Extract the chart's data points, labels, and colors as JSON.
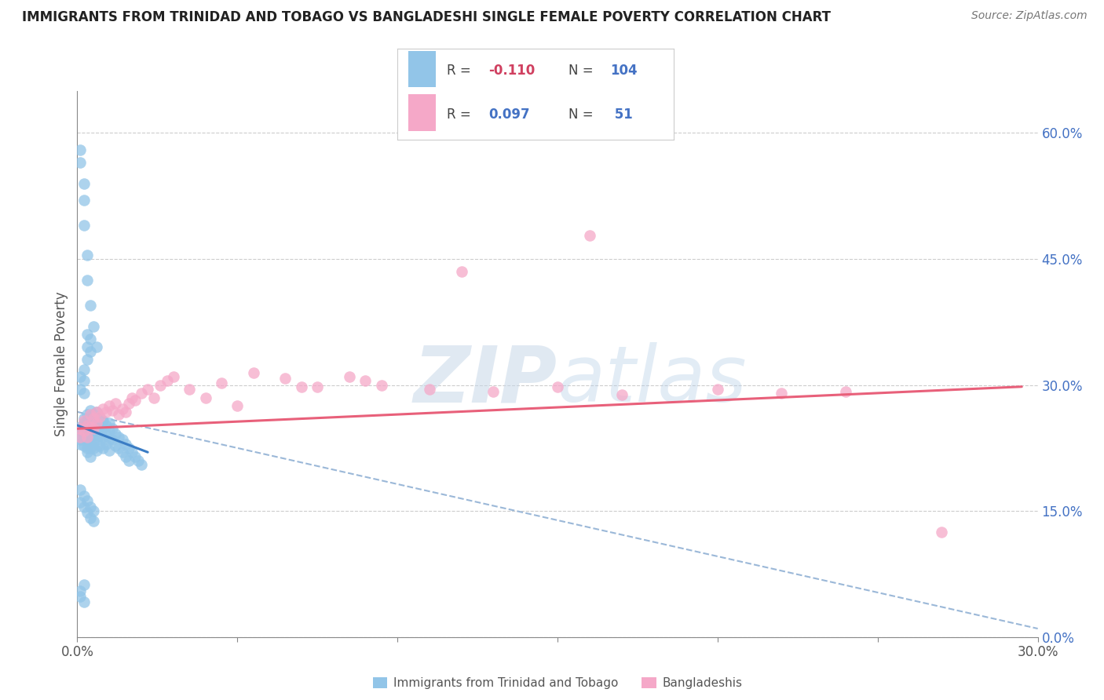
{
  "title": "IMMIGRANTS FROM TRINIDAD AND TOBAGO VS BANGLADESHI SINGLE FEMALE POVERTY CORRELATION CHART",
  "source": "Source: ZipAtlas.com",
  "ylabel": "Single Female Poverty",
  "xlim": [
    0.0,
    0.3
  ],
  "ylim": [
    0.0,
    0.65
  ],
  "right_yticks": [
    0.0,
    0.15,
    0.3,
    0.45,
    0.6
  ],
  "right_yticklabels": [
    "0.0%",
    "15.0%",
    "30.0%",
    "45.0%",
    "60.0%"
  ],
  "xticks": [
    0.0,
    0.05,
    0.1,
    0.15,
    0.2,
    0.25,
    0.3
  ],
  "xticklabels": [
    "0.0%",
    "",
    "",
    "",
    "",
    "",
    "30.0%"
  ],
  "blue_color": "#92C5E8",
  "pink_color": "#F5A8C8",
  "trend_blue_color": "#3A7CC4",
  "trend_pink_color": "#E8607A",
  "trend_gray_color": "#9BB8D8",
  "watermark_color": "#D8E8F5",
  "series1_label": "Immigrants from Trinidad and Tobago",
  "series2_label": "Bangladeshis",
  "legend_r1_val": "-0.110",
  "legend_n1_val": "104",
  "legend_r2_val": "0.097",
  "legend_n2_val": " 51",
  "blue_points_x": [
    0.001,
    0.001,
    0.001,
    0.001,
    0.001,
    0.002,
    0.002,
    0.002,
    0.002,
    0.002,
    0.002,
    0.002,
    0.003,
    0.003,
    0.003,
    0.003,
    0.003,
    0.003,
    0.003,
    0.003,
    0.004,
    0.004,
    0.004,
    0.004,
    0.004,
    0.004,
    0.004,
    0.004,
    0.005,
    0.005,
    0.005,
    0.005,
    0.005,
    0.005,
    0.006,
    0.006,
    0.006,
    0.006,
    0.006,
    0.007,
    0.007,
    0.007,
    0.007,
    0.008,
    0.008,
    0.008,
    0.008,
    0.009,
    0.009,
    0.009,
    0.01,
    0.01,
    0.01,
    0.01,
    0.011,
    0.011,
    0.012,
    0.012,
    0.013,
    0.013,
    0.014,
    0.014,
    0.015,
    0.015,
    0.016,
    0.016,
    0.017,
    0.018,
    0.019,
    0.02,
    0.001,
    0.001,
    0.002,
    0.002,
    0.002,
    0.003,
    0.003,
    0.003,
    0.004,
    0.004,
    0.001,
    0.001,
    0.002,
    0.002,
    0.003,
    0.003,
    0.004,
    0.004,
    0.005,
    0.005,
    0.001,
    0.002,
    0.002,
    0.003,
    0.003,
    0.004,
    0.005,
    0.006,
    0.001,
    0.002,
    0.001,
    0.001,
    0.002,
    0.002
  ],
  "blue_points_y": [
    0.25,
    0.245,
    0.24,
    0.235,
    0.23,
    0.26,
    0.255,
    0.25,
    0.245,
    0.24,
    0.235,
    0.228,
    0.265,
    0.258,
    0.25,
    0.245,
    0.238,
    0.232,
    0.225,
    0.22,
    0.27,
    0.262,
    0.255,
    0.248,
    0.24,
    0.232,
    0.225,
    0.215,
    0.265,
    0.255,
    0.248,
    0.24,
    0.232,
    0.225,
    0.268,
    0.255,
    0.245,
    0.235,
    0.222,
    0.26,
    0.25,
    0.24,
    0.228,
    0.258,
    0.248,
    0.238,
    0.225,
    0.252,
    0.242,
    0.23,
    0.255,
    0.245,
    0.235,
    0.222,
    0.248,
    0.235,
    0.242,
    0.228,
    0.238,
    0.225,
    0.235,
    0.22,
    0.23,
    0.215,
    0.225,
    0.21,
    0.22,
    0.215,
    0.21,
    0.205,
    0.31,
    0.295,
    0.305,
    0.318,
    0.29,
    0.36,
    0.345,
    0.33,
    0.355,
    0.34,
    0.175,
    0.16,
    0.168,
    0.155,
    0.162,
    0.148,
    0.155,
    0.142,
    0.15,
    0.138,
    0.565,
    0.52,
    0.49,
    0.455,
    0.425,
    0.395,
    0.37,
    0.345,
    0.58,
    0.54,
    0.055,
    0.048,
    0.062,
    0.042
  ],
  "pink_points_x": [
    0.001,
    0.001,
    0.002,
    0.002,
    0.003,
    0.003,
    0.004,
    0.004,
    0.005,
    0.005,
    0.006,
    0.006,
    0.007,
    0.008,
    0.009,
    0.01,
    0.011,
    0.012,
    0.013,
    0.014,
    0.015,
    0.016,
    0.017,
    0.018,
    0.02,
    0.022,
    0.024,
    0.026,
    0.028,
    0.05,
    0.07,
    0.09,
    0.11,
    0.13,
    0.15,
    0.17,
    0.2,
    0.22,
    0.24,
    0.03,
    0.035,
    0.04,
    0.045,
    0.055,
    0.065,
    0.075,
    0.085,
    0.095,
    0.12,
    0.16,
    0.27
  ],
  "pink_points_y": [
    0.248,
    0.238,
    0.258,
    0.245,
    0.252,
    0.238,
    0.265,
    0.25,
    0.26,
    0.248,
    0.268,
    0.255,
    0.262,
    0.272,
    0.268,
    0.275,
    0.27,
    0.278,
    0.265,
    0.272,
    0.268,
    0.278,
    0.285,
    0.282,
    0.29,
    0.295,
    0.285,
    0.3,
    0.305,
    0.275,
    0.298,
    0.305,
    0.295,
    0.292,
    0.298,
    0.288,
    0.295,
    0.29,
    0.292,
    0.31,
    0.295,
    0.285,
    0.302,
    0.315,
    0.308,
    0.298,
    0.31,
    0.3,
    0.435,
    0.478,
    0.125
  ],
  "blue_trend_x": [
    0.0,
    0.022
  ],
  "blue_trend_y": [
    0.252,
    0.22
  ],
  "pink_trend_x": [
    0.0,
    0.295
  ],
  "pink_trend_y": [
    0.248,
    0.298
  ],
  "gray_trend_x": [
    0.0,
    0.3
  ],
  "gray_trend_y": [
    0.268,
    0.01
  ]
}
